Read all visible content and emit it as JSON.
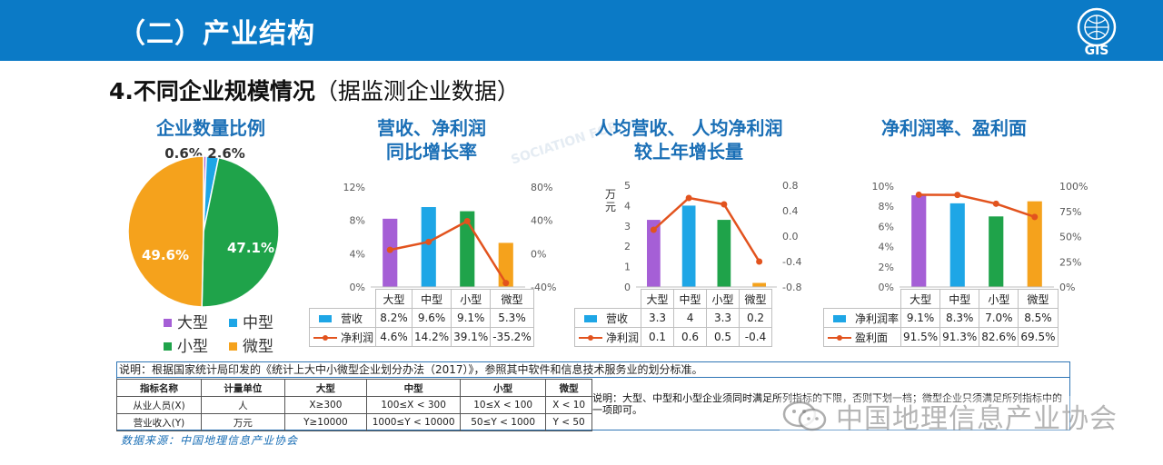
{
  "header": {
    "title": "（二）产业结构",
    "logo_text": "GIS"
  },
  "section": {
    "title_bold": "4.不同企业规模情况",
    "title_normal": "（据监测企业数据）"
  },
  "colors": {
    "large": "#a55fd6",
    "medium": "#1ea6e6",
    "small": "#1fa34a",
    "micro": "#f5a21c",
    "line": "#e2531e",
    "title": "#1a6fb6",
    "header": "#0b7ac6"
  },
  "categories": [
    "大型",
    "中型",
    "小型",
    "微型"
  ],
  "chart_data": [
    {
      "type": "pie",
      "title": "企业数量比例",
      "labels": [
        "大型",
        "中型",
        "小型",
        "微型"
      ],
      "values": [
        0.6,
        2.6,
        47.1,
        49.6
      ],
      "value_labels": [
        "0.6%",
        "2.6%",
        "47.1%",
        "49.6%"
      ],
      "legend_placement": "bottom"
    },
    {
      "type": "bar",
      "title_lines": [
        "营收、净利润",
        "同比增长率"
      ],
      "categories": [
        "大型",
        "中型",
        "小型",
        "微型"
      ],
      "series": [
        {
          "name": "营收",
          "type": "bar",
          "axis": "left",
          "values": [
            8.2,
            9.6,
            9.1,
            5.3
          ],
          "labels": [
            "8.2%",
            "9.6%",
            "9.1%",
            "5.3%"
          ]
        },
        {
          "name": "净利润",
          "type": "line",
          "axis": "right",
          "values": [
            4.6,
            14.2,
            39.1,
            -35.2
          ],
          "labels": [
            "4.6%",
            "14.2%",
            "39.1%",
            "-35.2%"
          ]
        }
      ],
      "ylim_left": [
        0,
        12
      ],
      "yticks_left": [
        "0%",
        "4%",
        "8%",
        "12%"
      ],
      "ylim_right": [
        -40,
        80
      ],
      "yticks_right": [
        "-40%",
        "0%",
        "40%",
        "80%"
      ],
      "ylabel_left": "",
      "grid": false
    },
    {
      "type": "bar",
      "title_lines": [
        "人均营收、 人均净利润",
        "较上年增长量"
      ],
      "categories": [
        "大型",
        "中型",
        "小型",
        "微型"
      ],
      "series": [
        {
          "name": "营收",
          "type": "bar",
          "axis": "left",
          "values": [
            3.3,
            4,
            3.3,
            0.2
          ],
          "labels": [
            "3.3",
            "4",
            "3.3",
            "0.2"
          ]
        },
        {
          "name": "净利润",
          "type": "line",
          "axis": "right",
          "values": [
            0.1,
            0.6,
            0.5,
            -0.4
          ],
          "labels": [
            "0.1",
            "0.6",
            "0.5",
            "-0.4"
          ]
        }
      ],
      "ylim_left": [
        0,
        5
      ],
      "yticks_left": [
        "0",
        "1",
        "2",
        "3",
        "4",
        "5"
      ],
      "ylim_right": [
        -0.8,
        0.8
      ],
      "yticks_right": [
        "-0.8",
        "-0.4",
        "0.0",
        "0.4",
        "0.8"
      ],
      "ylabel_left": "万元",
      "grid": false
    },
    {
      "type": "bar",
      "title_lines": [
        "净利润率、盈利面"
      ],
      "categories": [
        "大型",
        "中型",
        "小型",
        "微型"
      ],
      "series": [
        {
          "name": "净利润率",
          "type": "bar",
          "axis": "left",
          "values": [
            9.1,
            8.3,
            7.0,
            8.5
          ],
          "labels": [
            "9.1%",
            "8.3%",
            "7.0%",
            "8.5%"
          ]
        },
        {
          "name": "盈利面",
          "type": "line",
          "axis": "right",
          "values": [
            91.5,
            91.3,
            82.6,
            69.5
          ],
          "labels": [
            "91.5%",
            "91.3%",
            "82.6%",
            "69.5%"
          ]
        }
      ],
      "ylim_left": [
        0,
        10
      ],
      "yticks_left": [
        "0%",
        "2%",
        "4%",
        "6%",
        "8%",
        "10%"
      ],
      "ylim_right": [
        0,
        100
      ],
      "yticks_right": [
        "0%",
        "25%",
        "50%",
        "75%",
        "100%"
      ],
      "ylabel_left": "",
      "grid": false
    }
  ],
  "standard": {
    "note_top": "说明：根据国家统计局印发的《统计上大中小微型企业划分办法（2017）》，参照其中软件和信息技术服务业的划分标准。",
    "rows": [
      [
        "指标名称",
        "计量单位",
        "大型",
        "中型",
        "小型",
        "微型"
      ],
      [
        "从业人员(X)",
        "人",
        "X≥300",
        "100≤X < 300",
        "10≤X < 100",
        "X < 10"
      ],
      [
        "营业收入(Y)",
        "万元",
        "Y≥10000",
        "1000≤Y < 10000",
        "50≤Y < 1000",
        "Y < 50"
      ]
    ],
    "side_note": "说明：大型、中型和小型企业须同时满足所列指标的下限，否则下划一档；微型企业只须满足所列指标中的一项即可。"
  },
  "source": "数据来源：中国地理信息产业协会",
  "watermark": "中国地理信息产业协会",
  "background_watermark": "SOCIATION FOR"
}
